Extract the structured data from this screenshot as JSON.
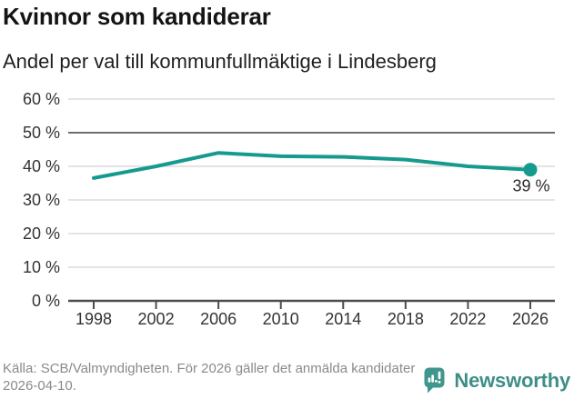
{
  "header": {
    "title": "Kvinnor som kandiderar",
    "subtitle": "Andel per val till kommunfullmäktige i Lindesberg"
  },
  "chart_data": {
    "type": "line",
    "title": "Kvinnor som kandiderar",
    "subtitle": "Andel per val till kommunfullmäktige i Lindesberg",
    "xlabel": "",
    "ylabel": "",
    "categories": [
      "1998",
      "2002",
      "2006",
      "2010",
      "2014",
      "2018",
      "2022",
      "2026"
    ],
    "values": [
      36.5,
      40,
      44,
      43,
      42.8,
      42,
      40,
      39
    ],
    "end_label": "39 %",
    "yticks": [
      0,
      10,
      20,
      30,
      40,
      50,
      60
    ],
    "ytick_suffix": " %",
    "ylim": [
      0,
      62
    ],
    "reference_line_y": 50,
    "grid": "on",
    "legend": "none",
    "colors": {
      "line": "#169a8d",
      "marker": "#169a8d",
      "grid": "#dcdcdc",
      "reference_line": "#6e6e6e",
      "axis": "#4d4d4d",
      "tick_label": "#333333",
      "annotation": "#2b2b2b"
    }
  },
  "footer": {
    "source": "Källa: SCB/Valmyndigheten. För 2026 gäller det anmälda kandidater 2026-04-10.",
    "brand": "Newsworthy",
    "brand_color": "#3e8e88",
    "icon_color": "#3f968e"
  }
}
